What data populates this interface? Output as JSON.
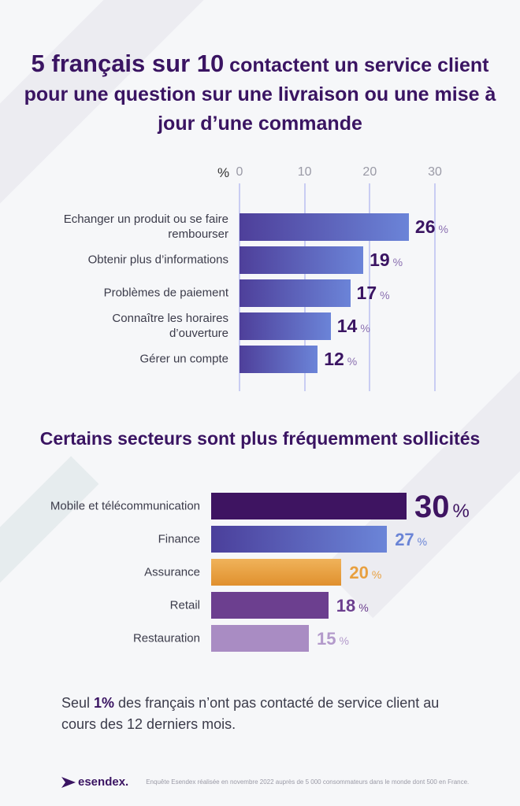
{
  "title": {
    "highlight": "5 français sur 10",
    "rest": " contactent un service client pour une question sur une livraison ou une mise à jour d’une commande"
  },
  "subtitle": "Certains secteurs sont plus fréquemment sollicités",
  "note": {
    "pre": "Seul ",
    "bold": "1%",
    "post": " des français n’ont pas contacté de service client au cours des 12 derniers mois."
  },
  "footer": {
    "logo": "esendex.",
    "source": "Enquête Esendex réalisée en novembre 2022 auprès de 5 000 consommateurs dans le monde dont 500 en France."
  },
  "chart_data": [
    {
      "type": "bar",
      "orientation": "horizontal",
      "axis_unit": "%",
      "ticks": [
        "0",
        "10",
        "20",
        "30"
      ],
      "xlim": [
        0,
        30
      ],
      "grid": true,
      "categories": [
        "Echanger un produit ou se faire rembourser",
        "Obtenir plus d’informations",
        "Problèmes de paiement",
        "Connaître les horaires d’ouverture",
        "Gérer un compte"
      ],
      "values": [
        26,
        19,
        17,
        14,
        12
      ],
      "value_suffix": "%",
      "value_color": "#3a1462"
    },
    {
      "type": "bar",
      "orientation": "horizontal",
      "title": "Certains secteurs sont plus fréquemment sollicités",
      "categories": [
        "Mobile et télécommunication",
        "Finance",
        "Assurance",
        "Retail",
        "Restauration"
      ],
      "values": [
        30,
        27,
        20,
        18,
        15
      ],
      "value_suffix": "%",
      "colors": [
        "#3e1461",
        "#6a84d6",
        "#e8a040",
        "#6c3f8f",
        "#b39acb"
      ]
    }
  ]
}
